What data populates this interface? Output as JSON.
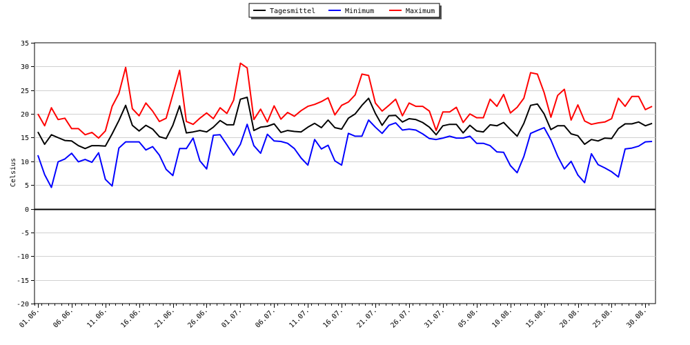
{
  "chart_data": {
    "type": "line",
    "ylabel": "Celsius",
    "ylim": [
      -20,
      35
    ],
    "yticks": [
      35,
      30,
      25,
      20,
      15,
      10,
      5,
      0,
      -5,
      -10,
      -15,
      -20
    ],
    "grid": true,
    "legend_position": "top-center",
    "x_tick_labels": [
      "01.06.",
      "06.06.",
      "11.06.",
      "16.06.",
      "21.06.",
      "26.06.",
      "01.07.",
      "06.07.",
      "11.07.",
      "16.07.",
      "21.07.",
      "26.07.",
      "31.07.",
      "05.08.",
      "10.08.",
      "15.08.",
      "20.08.",
      "25.08.",
      "30.08."
    ],
    "series": [
      {
        "name": "Tagesmittel",
        "color": "#000000",
        "values": [
          16.2,
          13.6,
          15.6,
          15.0,
          14.4,
          14.3,
          13.3,
          12.7,
          13.3,
          13.3,
          13.2,
          15.8,
          18.6,
          21.8,
          17.6,
          16.4,
          17.6,
          16.8,
          15.2,
          14.8,
          17.6,
          21.7,
          16.0,
          16.2,
          16.5,
          16.2,
          17.2,
          18.6,
          17.7,
          17.7,
          23.1,
          23.5,
          16.5,
          17.2,
          17.4,
          17.9,
          16.1,
          16.5,
          16.3,
          16.2,
          17.2,
          18.0,
          17.1,
          18.7,
          17.1,
          16.8,
          19.1,
          20.0,
          21.8,
          23.3,
          20.1,
          17.6,
          19.6,
          19.7,
          18.3,
          19.0,
          18.8,
          18.2,
          17.2,
          15.6,
          17.5,
          17.8,
          17.8,
          16.0,
          17.6,
          16.4,
          16.2,
          17.7,
          17.5,
          18.2,
          16.7,
          15.3,
          18.0,
          21.8,
          22.1,
          20.0,
          16.7,
          17.5,
          17.5,
          15.8,
          15.4,
          13.6,
          14.6,
          14.3,
          14.9,
          14.8,
          16.9,
          17.9,
          17.9,
          18.3,
          17.5,
          18.0
        ]
      },
      {
        "name": "Minimum",
        "color": "#0000ff",
        "values": [
          11.3,
          7.2,
          4.5,
          9.9,
          10.5,
          11.7,
          9.9,
          10.4,
          9.8,
          11.8,
          6.2,
          4.8,
          12.8,
          14.1,
          14.1,
          14.1,
          12.4,
          13.1,
          11.3,
          8.3,
          7.0,
          12.7,
          12.7,
          14.9,
          10.1,
          8.4,
          15.5,
          15.6,
          13.5,
          11.3,
          13.6,
          17.8,
          13.3,
          11.7,
          15.7,
          14.3,
          14.2,
          13.8,
          12.7,
          10.7,
          9.2,
          14.6,
          12.6,
          13.4,
          10.1,
          9.2,
          15.9,
          15.3,
          15.3,
          18.7,
          17.2,
          15.9,
          17.6,
          18.1,
          16.6,
          16.8,
          16.6,
          15.8,
          14.8,
          14.6,
          14.9,
          15.3,
          14.9,
          14.9,
          15.3,
          13.8,
          13.8,
          13.3,
          12.0,
          11.9,
          9.1,
          7.6,
          11.0,
          15.9,
          16.5,
          17.1,
          14.5,
          11.1,
          8.4,
          10.0,
          7.1,
          5.5,
          11.6,
          9.3,
          8.6,
          7.8,
          6.7,
          12.6,
          12.8,
          13.2,
          14.1,
          14.2
        ]
      },
      {
        "name": "Maximum",
        "color": "#ff0000",
        "values": [
          20.0,
          17.5,
          21.3,
          18.8,
          19.1,
          16.9,
          16.9,
          15.6,
          16.1,
          14.9,
          16.4,
          21.6,
          24.3,
          29.8,
          21.1,
          19.6,
          22.3,
          20.6,
          18.4,
          19.1,
          24.1,
          29.2,
          18.4,
          17.8,
          19.1,
          20.2,
          19.0,
          21.3,
          20.1,
          22.9,
          30.7,
          29.7,
          18.8,
          21.0,
          18.3,
          21.7,
          18.9,
          20.3,
          19.5,
          20.7,
          21.6,
          22.0,
          22.6,
          23.4,
          19.8,
          21.8,
          22.5,
          24.0,
          28.4,
          28.1,
          22.3,
          20.6,
          21.8,
          23.1,
          19.6,
          22.3,
          21.6,
          21.6,
          20.6,
          16.5,
          20.4,
          20.4,
          21.4,
          18.2,
          20.0,
          19.2,
          19.2,
          23.1,
          21.6,
          24.1,
          20.2,
          21.4,
          23.3,
          28.7,
          28.4,
          24.5,
          19.3,
          23.9,
          25.2,
          18.7,
          21.9,
          18.5,
          17.8,
          18.1,
          18.3,
          19.0,
          23.3,
          21.6,
          23.7,
          23.7,
          20.9,
          21.6
        ]
      }
    ]
  }
}
